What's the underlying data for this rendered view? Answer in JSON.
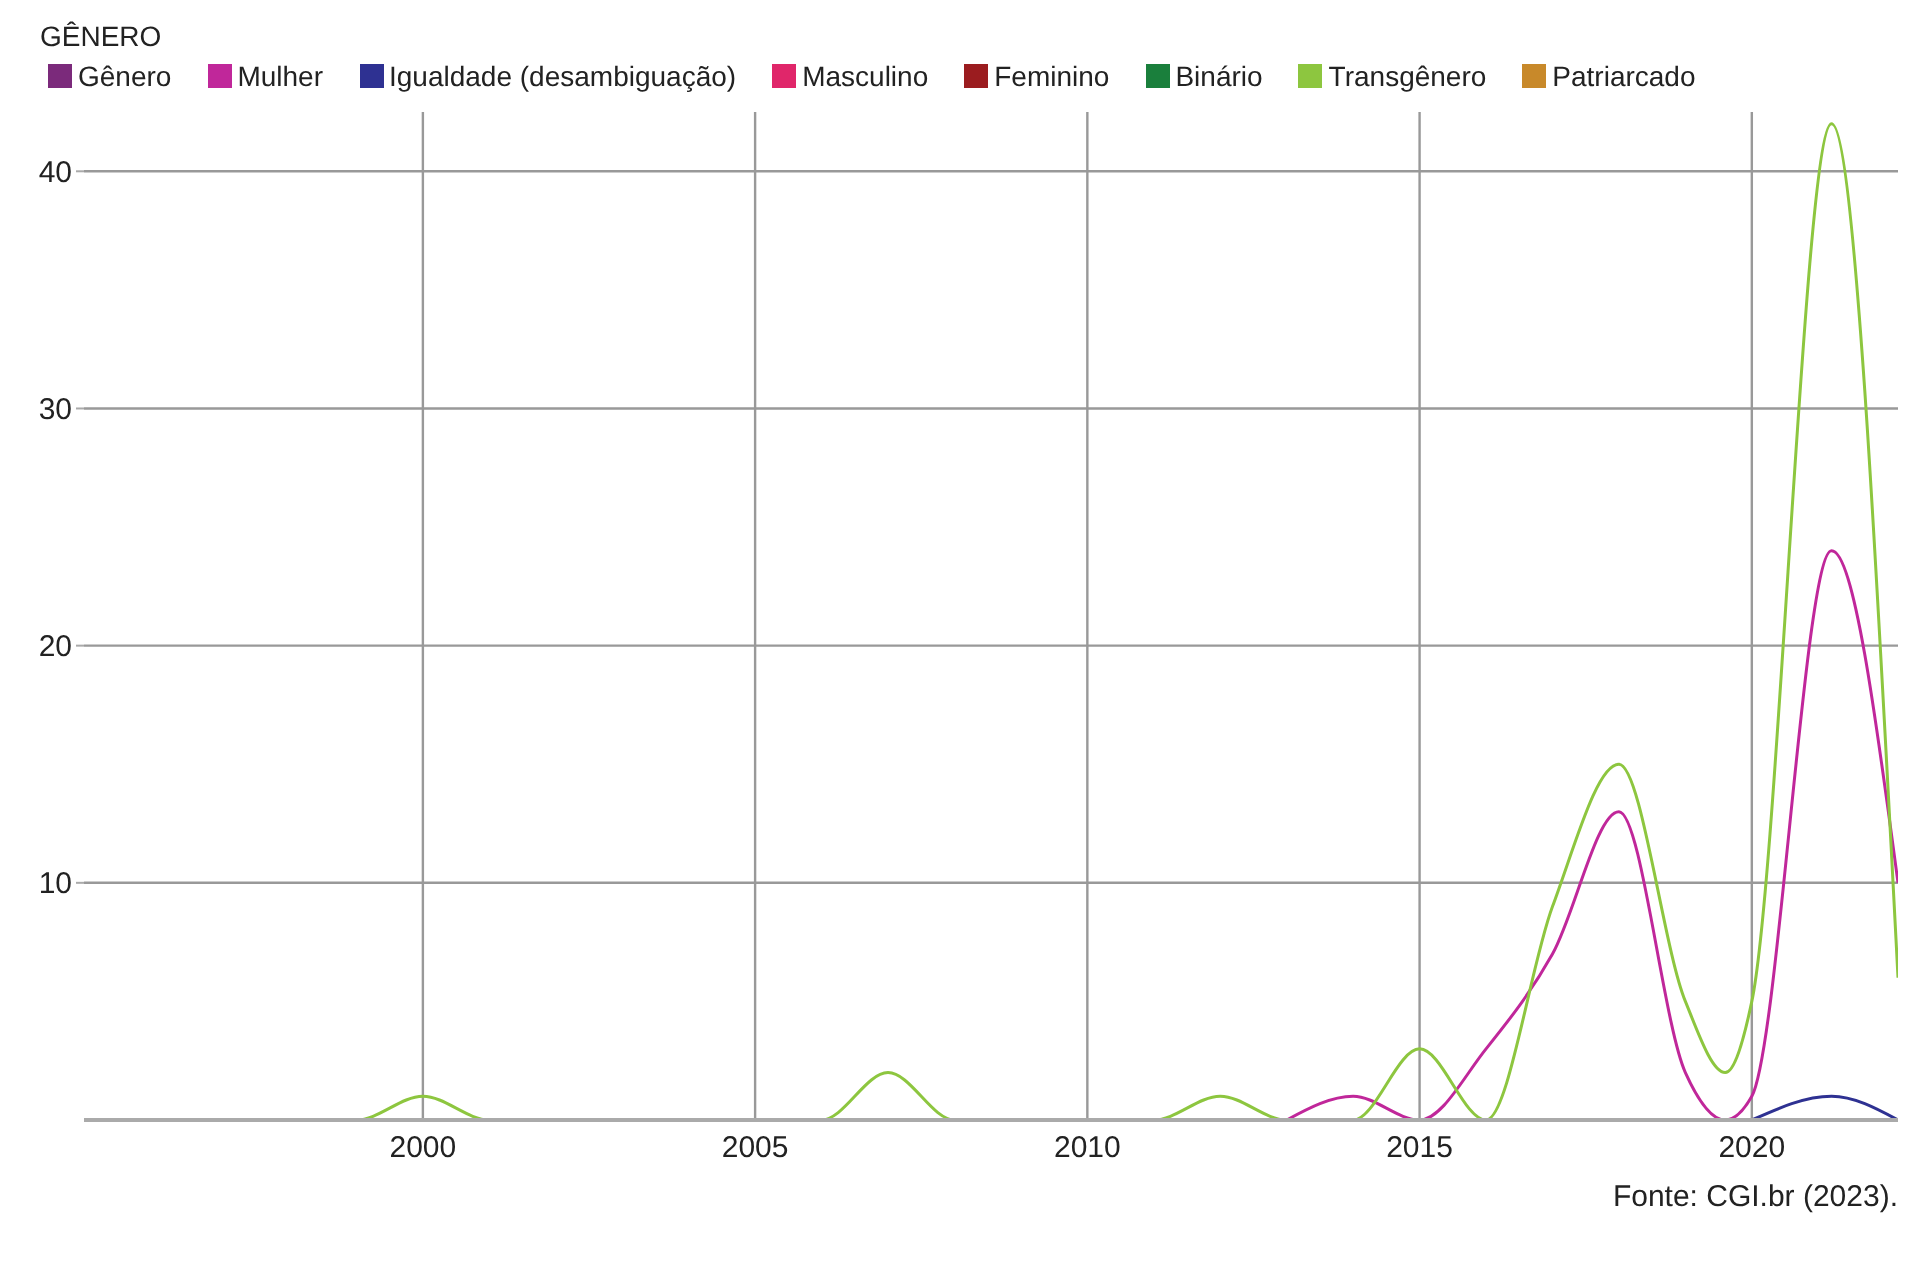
{
  "chart_data": {
    "type": "line",
    "legend_title": "GÊNERO",
    "legend": "top left",
    "grid": true,
    "marker": "none",
    "line_style": "solid",
    "x": [
      1996,
      1999,
      2000,
      2001,
      2006,
      2007,
      2008,
      2011,
      2012,
      2013,
      2014,
      2015,
      2016,
      2017,
      2018,
      2019,
      2019.6,
      2020,
      2021.2,
      2022.2
    ],
    "series": [
      {
        "name": "Gênero",
        "color": "#7b2a7b",
        "values": [
          null,
          null,
          null,
          null,
          null,
          null,
          null,
          null,
          null,
          null,
          null,
          null,
          null,
          null,
          null,
          null,
          null,
          null,
          null,
          null
        ]
      },
      {
        "name": "Mulher",
        "color": "#c0279a",
        "values": [
          null,
          null,
          null,
          null,
          null,
          null,
          null,
          null,
          null,
          0,
          1,
          0,
          3,
          7,
          13,
          2,
          0,
          1,
          24,
          10
        ]
      },
      {
        "name": "Igualdade (desambiguação)",
        "color": "#2e3192",
        "values": [
          null,
          null,
          null,
          null,
          null,
          null,
          null,
          null,
          null,
          null,
          null,
          null,
          null,
          null,
          null,
          null,
          null,
          0,
          1,
          0
        ]
      },
      {
        "name": "Masculino",
        "color": "#e0266a",
        "values": [
          null,
          null,
          null,
          null,
          null,
          null,
          null,
          null,
          null,
          null,
          null,
          null,
          null,
          null,
          null,
          null,
          null,
          null,
          null,
          null
        ]
      },
      {
        "name": "Feminino",
        "color": "#9b1c1f",
        "values": [
          null,
          null,
          null,
          null,
          null,
          null,
          null,
          null,
          null,
          null,
          null,
          null,
          null,
          null,
          null,
          null,
          null,
          null,
          null,
          null
        ]
      },
      {
        "name": "Binário",
        "color": "#1a7f3c",
        "values": [
          null,
          null,
          null,
          null,
          null,
          null,
          null,
          null,
          null,
          null,
          null,
          null,
          null,
          null,
          null,
          null,
          null,
          null,
          null,
          null
        ]
      },
      {
        "name": "Transgênero",
        "color": "#8dc63f",
        "values": [
          0,
          0,
          1,
          0,
          0,
          2,
          0,
          0,
          1,
          0,
          0,
          3,
          0,
          9,
          15,
          5,
          2,
          5,
          42,
          6
        ]
      },
      {
        "name": "Patriarcado",
        "color": "#c8892a",
        "values": [
          null,
          null,
          null,
          null,
          null,
          null,
          null,
          null,
          null,
          null,
          null,
          null,
          null,
          null,
          null,
          null,
          null,
          null,
          null,
          null
        ]
      }
    ],
    "xlim": [
      1994.9,
      2022.2
    ],
    "xticks": [
      2000,
      2005,
      2010,
      2015,
      2020
    ],
    "ylim": [
      0,
      42.5
    ],
    "yticks": [
      10,
      20,
      30,
      40
    ],
    "annotations": [
      "Fonte: CGI.br (2023)."
    ]
  }
}
